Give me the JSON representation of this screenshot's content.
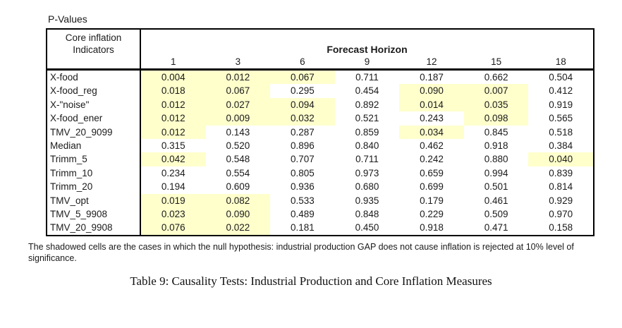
{
  "table": {
    "title": "P-Values",
    "corner_header": "Core inflation\nIndicators",
    "span_header": "Forecast Horizon",
    "horizons": [
      "1",
      "3",
      "6",
      "9",
      "12",
      "15",
      "18"
    ],
    "rows": [
      {
        "label": "X-food",
        "values": [
          "0.004",
          "0.012",
          "0.067",
          "0.711",
          "0.187",
          "0.662",
          "0.504"
        ]
      },
      {
        "label": "X-food_reg",
        "values": [
          "0.018",
          "0.067",
          "0.295",
          "0.454",
          "0.090",
          "0.007",
          "0.412"
        ]
      },
      {
        "label": "X-\"noise\"",
        "values": [
          "0.012",
          "0.027",
          "0.094",
          "0.892",
          "0.014",
          "0.035",
          "0.919"
        ]
      },
      {
        "label": "X-food_ener",
        "values": [
          "0.012",
          "0.009",
          "0.032",
          "0.521",
          "0.243",
          "0.098",
          "0.565"
        ]
      },
      {
        "label": "TMV_20_9099",
        "values": [
          "0.012",
          "0.143",
          "0.287",
          "0.859",
          "0.034",
          "0.845",
          "0.518"
        ]
      },
      {
        "label": "Median",
        "values": [
          "0.315",
          "0.520",
          "0.896",
          "0.840",
          "0.462",
          "0.918",
          "0.384"
        ]
      },
      {
        "label": "Trimm_5",
        "values": [
          "0.042",
          "0.548",
          "0.707",
          "0.711",
          "0.242",
          "0.880",
          "0.040"
        ]
      },
      {
        "label": "Trimm_10",
        "values": [
          "0.234",
          "0.554",
          "0.805",
          "0.973",
          "0.659",
          "0.994",
          "0.839"
        ]
      },
      {
        "label": "Trimm_20",
        "values": [
          "0.194",
          "0.609",
          "0.936",
          "0.680",
          "0.699",
          "0.501",
          "0.814"
        ]
      },
      {
        "label": "TMV_opt",
        "values": [
          "0.019",
          "0.082",
          "0.533",
          "0.935",
          "0.179",
          "0.461",
          "0.929"
        ]
      },
      {
        "label": "TMV_5_9908",
        "values": [
          "0.023",
          "0.090",
          "0.489",
          "0.848",
          "0.229",
          "0.509",
          "0.970"
        ]
      },
      {
        "label": "TMV_20_9908",
        "values": [
          "0.076",
          "0.022",
          "0.181",
          "0.450",
          "0.918",
          "0.471",
          "0.158"
        ]
      }
    ],
    "highlight_color": "#FFFFCC",
    "significance_threshold": 0.1
  },
  "note": "The shadowed cells are the cases in which the null hypothesis: industrial production GAP does not cause inflation is rejected at 10% level of significance.",
  "caption": "Table 9: Causality Tests: Industrial Production and Core Inflation Measures"
}
